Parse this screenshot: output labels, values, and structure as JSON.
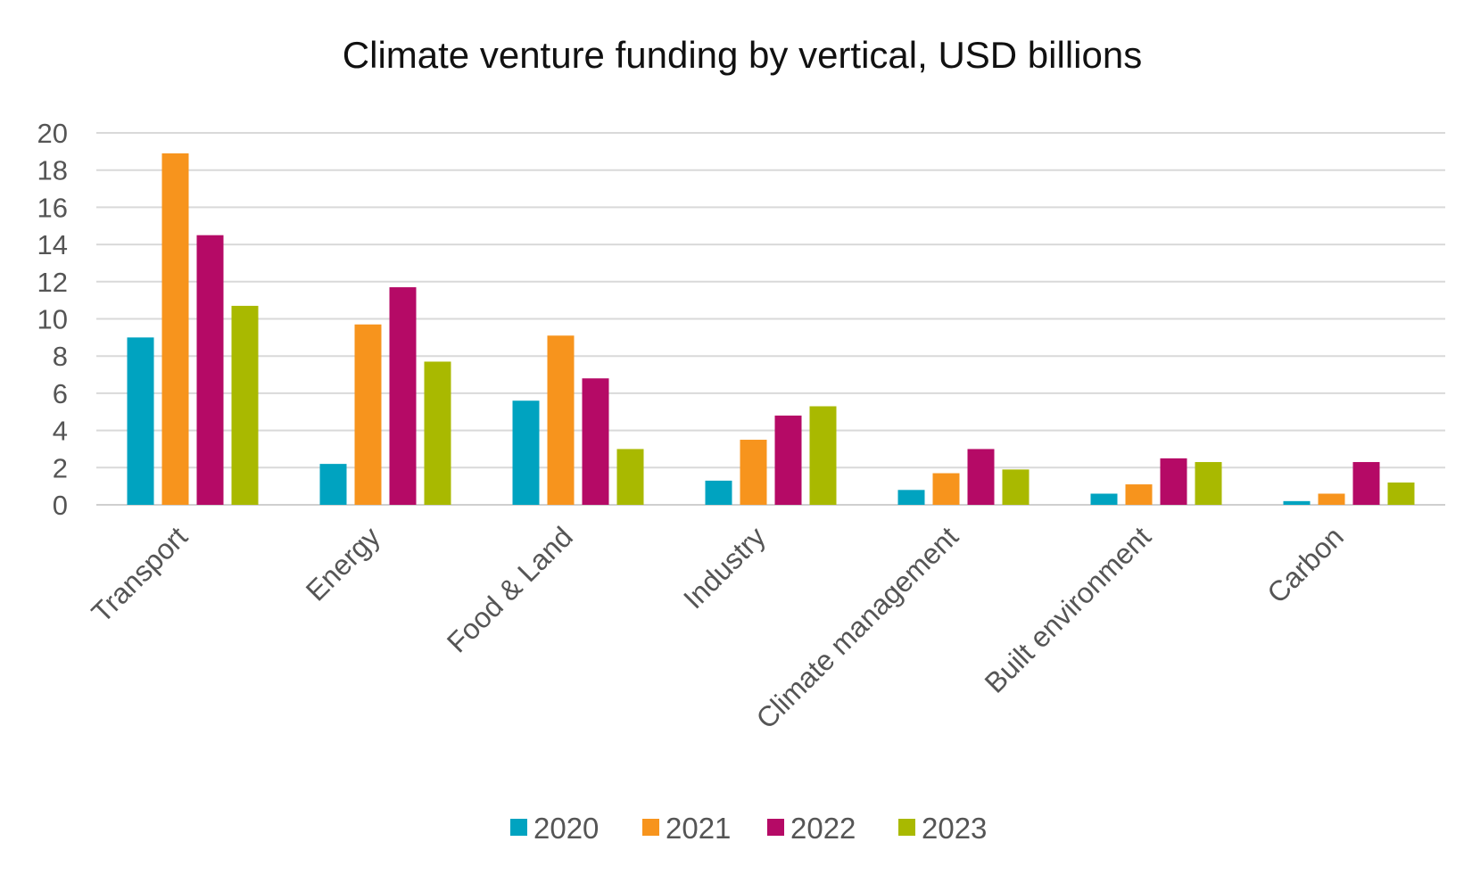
{
  "chart_data": {
    "type": "bar",
    "title": "Climate venture funding by vertical, USD billions",
    "xlabel": "",
    "ylabel": "",
    "ylim": [
      0,
      20
    ],
    "yticks": [
      0,
      2,
      4,
      6,
      8,
      10,
      12,
      14,
      16,
      18,
      20
    ],
    "grid": true,
    "legend_position": "bottom",
    "categories": [
      "Transport",
      "Energy",
      "Food & Land",
      "Industry",
      "Climate management",
      "Built environment",
      "Carbon"
    ],
    "series": [
      {
        "name": "2020",
        "color": "#00A3C0",
        "values": [
          9.0,
          2.2,
          5.6,
          1.3,
          0.8,
          0.6,
          0.2
        ]
      },
      {
        "name": "2021",
        "color": "#F7941D",
        "values": [
          18.9,
          9.7,
          9.1,
          3.5,
          1.7,
          1.1,
          0.6
        ]
      },
      {
        "name": "2022",
        "color": "#B50A66",
        "values": [
          14.5,
          11.7,
          6.8,
          4.8,
          3.0,
          2.5,
          2.3
        ]
      },
      {
        "name": "2023",
        "color": "#A9B900",
        "values": [
          10.7,
          7.7,
          3.0,
          5.3,
          1.9,
          2.3,
          1.2
        ]
      }
    ]
  }
}
